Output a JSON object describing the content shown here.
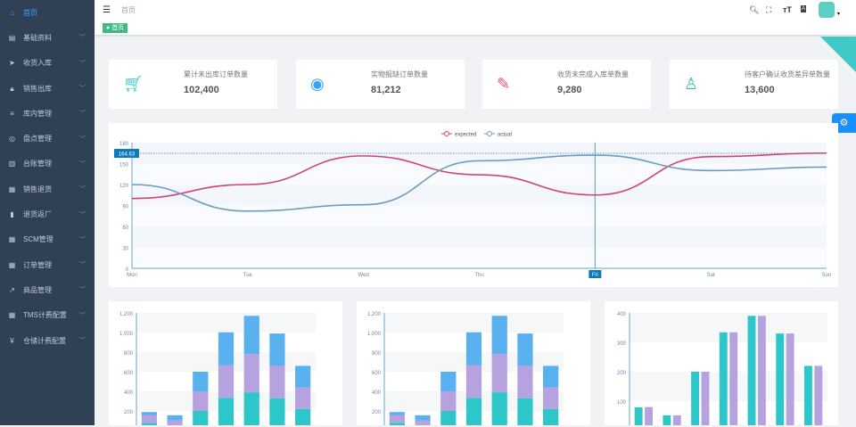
{
  "sidebar": {
    "items": [
      {
        "label": "首页",
        "icon": "home-icon",
        "active": true
      },
      {
        "label": "基础资料",
        "icon": "document-icon"
      },
      {
        "label": "收货入库",
        "icon": "send-icon"
      },
      {
        "label": "销售出库",
        "icon": "lock-icon"
      },
      {
        "label": "库内管理",
        "icon": "list-icon"
      },
      {
        "label": "盘点管理",
        "icon": "target-icon"
      },
      {
        "label": "台账管理",
        "icon": "book-icon"
      },
      {
        "label": "销售退货",
        "icon": "grid-icon"
      },
      {
        "label": "退货返厂",
        "icon": "bar-chart-icon"
      },
      {
        "label": "SCM管理",
        "icon": "table-icon"
      },
      {
        "label": "订单管理",
        "icon": "table-icon"
      },
      {
        "label": "商品管理",
        "icon": "external-link-icon"
      },
      {
        "label": "TMS计费配置",
        "icon": "table-icon"
      },
      {
        "label": "仓储计费配置",
        "icon": "yen-icon"
      }
    ]
  },
  "header": {
    "breadcrumb": "首页",
    "tag": "首页"
  },
  "cards": [
    {
      "label": "累计未出库订单数量",
      "value": "102,400",
      "icon": "shopping-cart-icon",
      "color": "#40c9c6"
    },
    {
      "label": "实物报缺订单数量",
      "value": "81,212",
      "icon": "bell-icon",
      "color": "#36a3f7"
    },
    {
      "label": "收货未完成入库单数量",
      "value": "9,280",
      "icon": "form-icon",
      "color": "#f4516c"
    },
    {
      "label": "待客户确认收货差异单数量",
      "value": "13,600",
      "icon": "user-search-icon",
      "color": "#34bfa3"
    }
  ],
  "chart_data": [
    {
      "type": "line",
      "categories": [
        "Mon",
        "Tue",
        "Wed",
        "Thu",
        "Fri",
        "Sat",
        "Sun"
      ],
      "ylim": [
        0,
        180
      ],
      "yticks": [
        0,
        30,
        60,
        90,
        120,
        150,
        180
      ],
      "series": [
        {
          "name": "expected",
          "color": "#d0437a",
          "values": [
            100,
            120,
            161,
            134,
            105,
            160,
            165
          ]
        },
        {
          "name": "actual",
          "color": "#6b9ac4",
          "values": [
            120,
            82,
            91,
            154,
            162,
            140,
            145
          ]
        }
      ],
      "legend": "top-center",
      "tooltip": {
        "category": "Fri",
        "y_label": "164.63"
      }
    },
    {
      "type": "bar",
      "stacked": true,
      "ylim": [
        0,
        1200
      ],
      "yticks": [
        "200",
        "400",
        "600",
        "800",
        "1,000",
        "1,200"
      ],
      "series": [
        {
          "color": "#2ec7c9",
          "values": [
            79,
            52,
            200,
            334,
            390,
            330,
            220
          ]
        },
        {
          "color": "#b6a2de",
          "values": [
            80,
            52,
            200,
            334,
            390,
            330,
            220
          ]
        },
        {
          "color": "#5ab1ef",
          "values": [
            30,
            52,
            200,
            334,
            390,
            330,
            220
          ]
        }
      ]
    },
    {
      "type": "bar",
      "stacked": true,
      "ylim": [
        0,
        1200
      ],
      "yticks": [
        "200",
        "400",
        "600",
        "800",
        "1,000",
        "1,200"
      ],
      "series": [
        {
          "color": "#2ec7c9",
          "values": [
            79,
            52,
            200,
            334,
            390,
            330,
            220
          ]
        },
        {
          "color": "#b6a2de",
          "values": [
            80,
            52,
            200,
            334,
            390,
            330,
            220
          ]
        },
        {
          "color": "#5ab1ef",
          "values": [
            30,
            52,
            200,
            334,
            390,
            330,
            220
          ]
        }
      ]
    },
    {
      "type": "bar",
      "stacked": false,
      "ylim": [
        0,
        400
      ],
      "yticks": [
        "100",
        "200",
        "300",
        "400"
      ],
      "series": [
        {
          "color": "#2ec7c9",
          "values": [
            79,
            52,
            200,
            334,
            390,
            330,
            220
          ]
        },
        {
          "color": "#b6a2de",
          "values": [
            80,
            52,
            200,
            334,
            390,
            330,
            220
          ]
        }
      ]
    }
  ]
}
